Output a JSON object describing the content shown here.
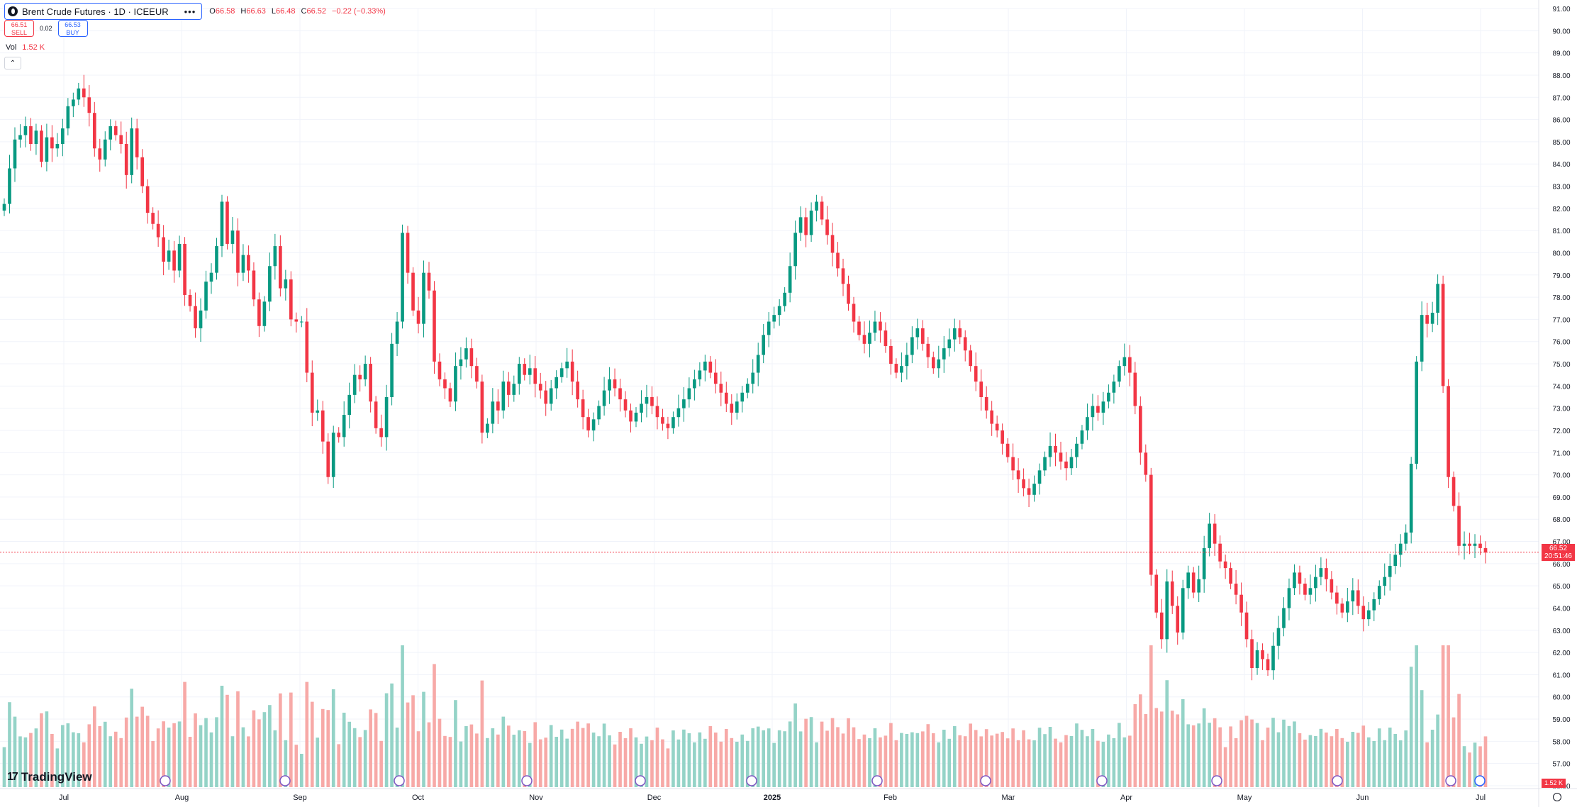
{
  "symbol": {
    "title": "Brent Crude Futures · 1D · ICEEUR",
    "more": "•••",
    "open_label": "O",
    "open": "66.58",
    "high_label": "H",
    "high": "66.63",
    "low_label": "L",
    "low": "66.48",
    "close_label": "C",
    "close": "66.52",
    "change": "−0.22 (−0.33%)"
  },
  "trade": {
    "sell_price": "66.51",
    "sell_label": "SELL",
    "spread": "0.02",
    "buy_price": "66.53",
    "buy_label": "BUY"
  },
  "volume": {
    "label": "Vol",
    "value": "1.52 K"
  },
  "collapse_icon": "chevron-up-icon",
  "price_tag": {
    "price": "66.52",
    "countdown": "20:51:46"
  },
  "volume_tag": "1.52 K",
  "logo_text": "TradingView",
  "colors": {
    "up": "#089981",
    "down": "#f23645",
    "up_vol": "#94d3c7",
    "down_vol": "#f7a9a7",
    "grid": "#f0f3fa",
    "accent": "#2962ff"
  },
  "chart_data": {
    "type": "candlestick",
    "ylim": [
      56,
      91
    ],
    "y_ticks": [
      "56.00",
      "57.00",
      "58.00",
      "59.00",
      "60.00",
      "61.00",
      "62.00",
      "63.00",
      "64.00",
      "65.00",
      "66.00",
      "67.00",
      "68.00",
      "69.00",
      "70.00",
      "71.00",
      "72.00",
      "73.00",
      "74.00",
      "75.00",
      "76.00",
      "77.00",
      "78.00",
      "79.00",
      "80.00",
      "81.00",
      "82.00",
      "83.00",
      "84.00",
      "85.00",
      "86.00",
      "87.00",
      "88.00",
      "89.00",
      "90.00",
      "91.00"
    ],
    "x_labels": [
      "Jul",
      "Aug",
      "Sep",
      "Oct",
      "Nov",
      "Dec",
      "2025",
      "Feb",
      "Mar",
      "Apr",
      "May",
      "Jun",
      "Jul"
    ],
    "current_price": 66.52,
    "closes": [
      82.2,
      83.8,
      85.1,
      85.3,
      85.7,
      84.9,
      85.5,
      84.1,
      85.2,
      84.7,
      84.9,
      85.6,
      86.6,
      86.9,
      87.4,
      87.0,
      86.3,
      84.7,
      84.2,
      85.1,
      85.7,
      85.3,
      84.9,
      83.5,
      85.6,
      84.3,
      83.0,
      81.8,
      81.3,
      80.7,
      79.6,
      80.1,
      79.2,
      80.4,
      78.1,
      77.6,
      76.6,
      77.4,
      78.7,
      79.1,
      80.3,
      82.3,
      80.4,
      81.0,
      79.1,
      79.9,
      79.2,
      77.9,
      76.7,
      77.8,
      79.4,
      80.3,
      78.4,
      78.8,
      77.0,
      76.9,
      76.9,
      74.6,
      72.8,
      72.9,
      71.5,
      69.9,
      71.9,
      71.7,
      72.7,
      73.6,
      74.5,
      74.3,
      75.0,
      73.3,
      72.1,
      71.7,
      73.5,
      75.9,
      76.9,
      80.9,
      79.1,
      77.4,
      76.8,
      79.1,
      78.3,
      75.1,
      74.3,
      73.9,
      73.3,
      74.9,
      75.2,
      75.7,
      74.9,
      74.2,
      71.9,
      72.3,
      73.3,
      72.9,
      74.2,
      73.6,
      74.1,
      75.0,
      74.5,
      74.8,
      74.1,
      73.8,
      73.2,
      73.9,
      74.4,
      74.8,
      75.1,
      74.2,
      73.4,
      72.6,
      72.0,
      72.5,
      73.1,
      73.8,
      74.3,
      73.9,
      73.4,
      72.9,
      72.4,
      72.8,
      73.2,
      73.5,
      73.1,
      72.6,
      72.3,
      72.1,
      72.6,
      73.0,
      73.4,
      73.9,
      74.3,
      74.7,
      75.1,
      74.6,
      74.1,
      73.7,
      73.2,
      72.8,
      73.3,
      73.7,
      74.1,
      74.6,
      75.4,
      76.3,
      76.9,
      77.2,
      77.6,
      78.2,
      79.4,
      80.9,
      81.6,
      80.8,
      81.9,
      82.3,
      81.5,
      80.8,
      80.0,
      79.3,
      78.6,
      77.7,
      76.9,
      76.3,
      75.9,
      76.4,
      76.9,
      76.5,
      75.8,
      75.0,
      74.6,
      74.9,
      75.4,
      76.2,
      76.6,
      75.9,
      75.3,
      74.8,
      75.2,
      75.7,
      76.1,
      76.6,
      76.2,
      75.6,
      74.9,
      74.2,
      73.5,
      72.9,
      72.3,
      72.0,
      71.4,
      70.8,
      70.2,
      69.8,
      69.4,
      69.1,
      69.6,
      70.2,
      70.8,
      71.3,
      71.0,
      70.6,
      70.3,
      70.8,
      71.4,
      72.0,
      72.6,
      73.1,
      72.8,
      73.3,
      73.7,
      74.2,
      74.9,
      75.3,
      74.6,
      73.1,
      71.0,
      70.0,
      65.5,
      63.8,
      62.6,
      65.2,
      64.1,
      62.9,
      64.9,
      65.6,
      64.7,
      65.3,
      66.7,
      67.8,
      66.9,
      66.1,
      65.8,
      65.1,
      64.6,
      63.8,
      62.6,
      61.3,
      62.1,
      61.7,
      61.2,
      62.3,
      63.1,
      64.0,
      64.9,
      65.6,
      65.1,
      64.6,
      64.9,
      65.4,
      65.8,
      65.3,
      64.7,
      64.2,
      63.8,
      64.3,
      64.8,
      64.1,
      63.5,
      63.9,
      64.4,
      65.0,
      65.4,
      65.9,
      66.4,
      66.9,
      67.4,
      70.5,
      75.1,
      77.2,
      76.8,
      77.3,
      78.6,
      74.0,
      69.9,
      68.6,
      66.8,
      66.9,
      66.8,
      66.9,
      66.7,
      66.5
    ]
  }
}
